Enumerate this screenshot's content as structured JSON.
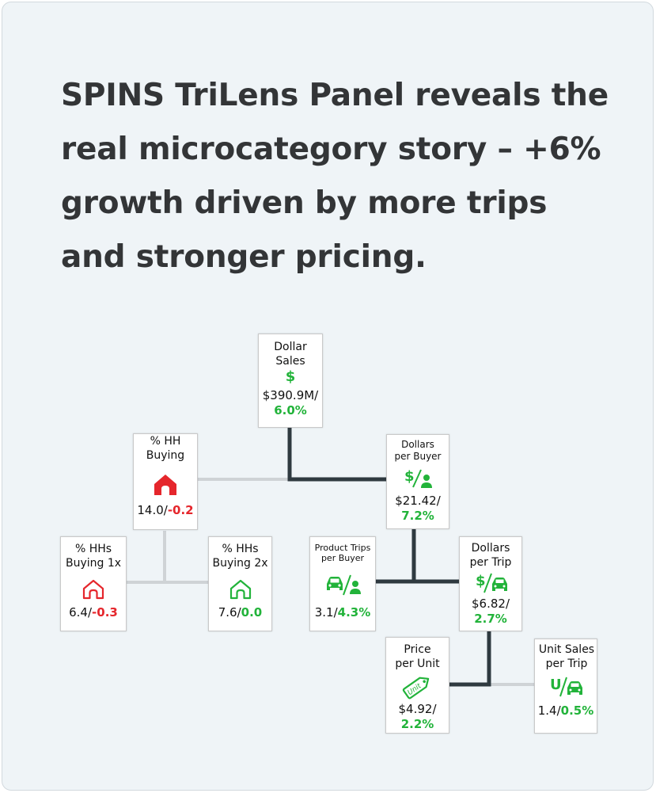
{
  "headline": "SPINS TriLens Panel reveals the real microcategory story – +6% growth driven by more trips and stronger pricing.",
  "colors": {
    "positive": "#22b33a",
    "negative": "#e5262c",
    "connector": "#2f3a40",
    "connector_light": "#cfd3d6"
  },
  "nodes": {
    "dollar_sales": {
      "label": "Dollar Sales",
      "icon": "dollar-icon",
      "value": "$390.9M/",
      "change": "6.0%"
    },
    "hh_buying": {
      "label": "% HH Buying",
      "icon": "house-icon",
      "value": "14.0/",
      "change": "-0.2"
    },
    "dollars_per_buyer": {
      "label": "Dollars per Buyer",
      "icon": "dollar-per-person-icon",
      "value": "$21.42/",
      "change": "7.2%"
    },
    "hhs_buying_1x": {
      "label": "% HHs Buying 1x",
      "icon": "house-outline-icon",
      "value": "6.4/",
      "change": "-0.3"
    },
    "hhs_buying_2x": {
      "label": "% HHs Buying 2x",
      "icon": "house-outline-icon",
      "value": "7.6/",
      "change": "0.0"
    },
    "product_trips_per_buyer": {
      "label": "Product Trips per Buyer",
      "icon": "car-per-person-icon",
      "value": "3.1/",
      "change": "4.3%"
    },
    "dollars_per_trip": {
      "label": "Dollars per Trip",
      "icon": "dollar-per-car-icon",
      "value": "$6.82/",
      "change": "2.7%"
    },
    "price_per_unit": {
      "label": "Price per Unit",
      "icon": "price-tag-icon",
      "tag_text": "Unit",
      "value": "$4.92/",
      "change": "2.2%"
    },
    "unit_sales_per_trip": {
      "label": "Unit Sales per Trip",
      "icon": "unit-per-car-icon",
      "value": "1.4/",
      "change": "0.5%"
    }
  },
  "icon_glyphs": {
    "dollar": "$",
    "unit": "U"
  }
}
